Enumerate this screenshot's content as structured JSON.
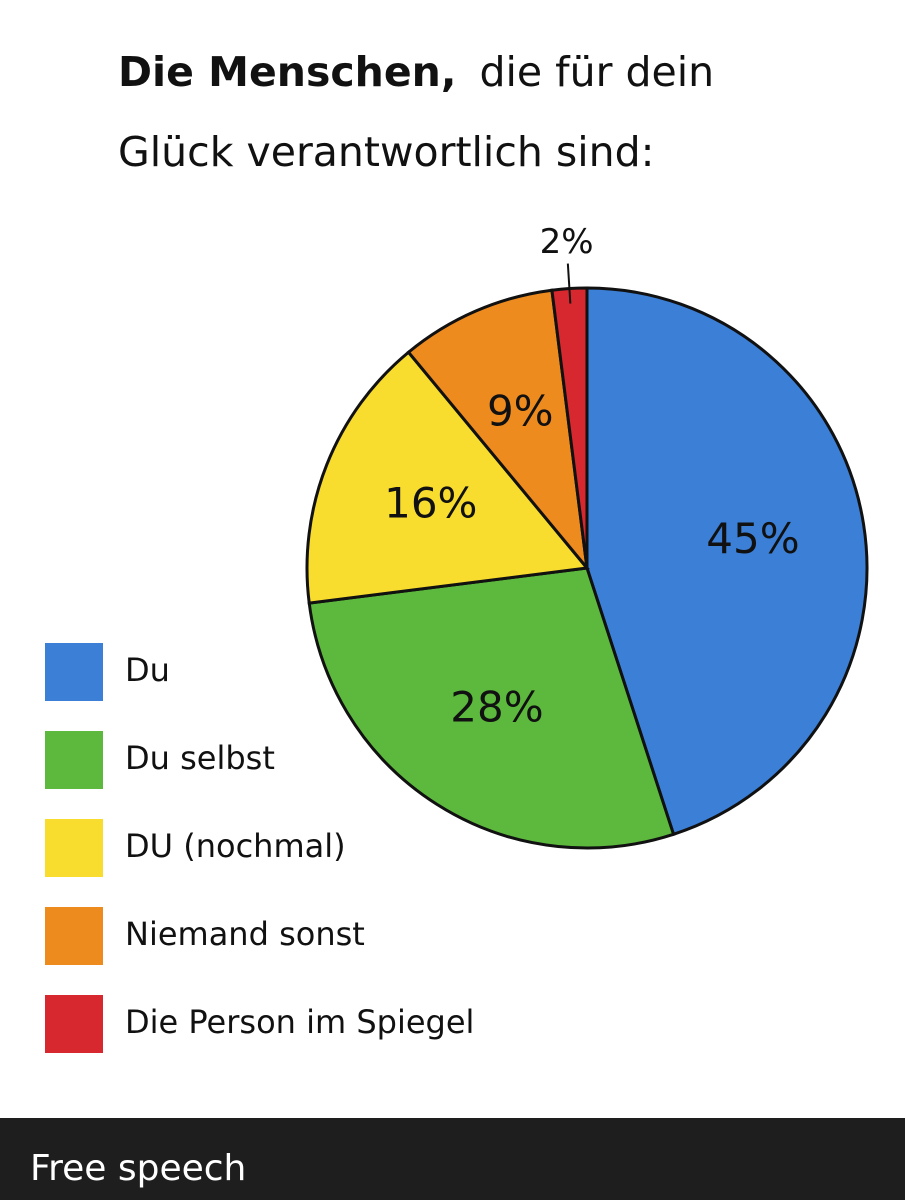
{
  "chart_data": {
    "type": "pie",
    "title": {
      "bold": "Die Menschen,",
      "lines": [
        "die für dein",
        "Glück verantwortlich sind:"
      ]
    },
    "categories": [
      "Du",
      "Du selbst",
      "DU (nochmal)",
      "Niemand sonst",
      "Die Person im Spiegel"
    ],
    "values": [
      45,
      28,
      16,
      9,
      2
    ],
    "value_labels": [
      "45%",
      "28%",
      "16%",
      "9%",
      "2%"
    ],
    "colors": [
      "#3b7fd6",
      "#5cb93d",
      "#f8dc2e",
      "#ee8b1f",
      "#d8282f"
    ],
    "legend": "left"
  },
  "caption": "Free speech"
}
